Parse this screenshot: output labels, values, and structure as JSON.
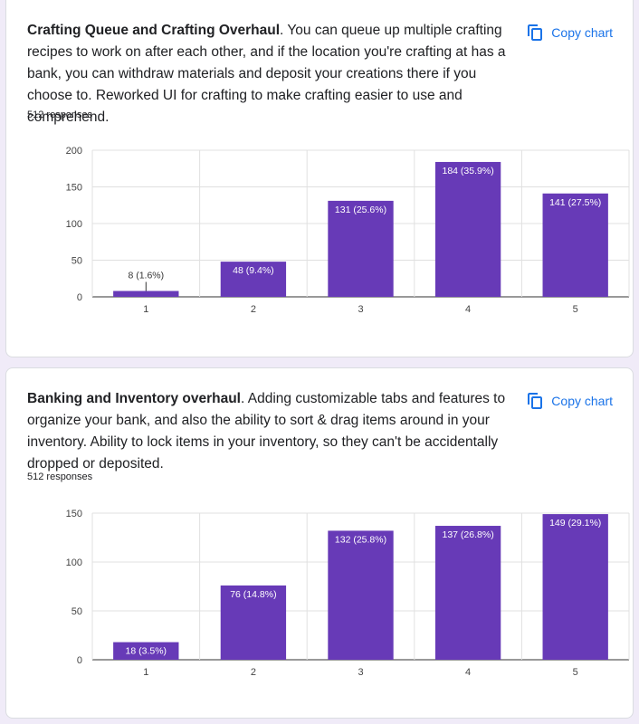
{
  "questions": [
    {
      "title": "Crafting Queue and Crafting Overhaul",
      "description": ". You can queue up multiple crafting recipes to work on after each other, and if the location you're crafting at has a bank, you can withdraw materials and deposit your creations there if you choose to. Reworked UI for crafting to make crafting easier to use and comprehend.",
      "responses": "512 responses",
      "copy_label": "Copy chart"
    },
    {
      "title": "Banking and Inventory overhaul",
      "description": ". Adding customizable tabs and features to organize your bank, and also the ability to sort & drag items around in your inventory. Ability to lock items in your inventory, so they can't be accidentally dropped or deposited.",
      "responses": "512 responses",
      "copy_label": "Copy chart"
    }
  ],
  "icons": {
    "copy": "copy-icon"
  },
  "colors": {
    "bar": "#673ab7",
    "link": "#1a73e8",
    "grid": "#e0e0e0",
    "background": "#f0ebf8"
  },
  "chart_data": [
    {
      "type": "bar",
      "categories": [
        "1",
        "2",
        "3",
        "4",
        "5"
      ],
      "values": [
        8,
        48,
        131,
        184,
        141
      ],
      "data_labels": [
        "8 (1.6%)",
        "48 (9.4%)",
        "131 (25.6%)",
        "184 (35.9%)",
        "141 (27.5%)"
      ],
      "yticks": [
        "0",
        "50",
        "100",
        "150",
        "200"
      ],
      "ylim": [
        0,
        200
      ],
      "grid": true
    },
    {
      "type": "bar",
      "categories": [
        "1",
        "2",
        "3",
        "4",
        "5"
      ],
      "values": [
        18,
        76,
        132,
        137,
        149
      ],
      "data_labels": [
        "18 (3.5%)",
        "76 (14.8%)",
        "132 (25.8%)",
        "137 (26.8%)",
        "149 (29.1%)"
      ],
      "yticks": [
        "0",
        "50",
        "100",
        "150"
      ],
      "ylim": [
        0,
        150
      ],
      "grid": true
    }
  ]
}
